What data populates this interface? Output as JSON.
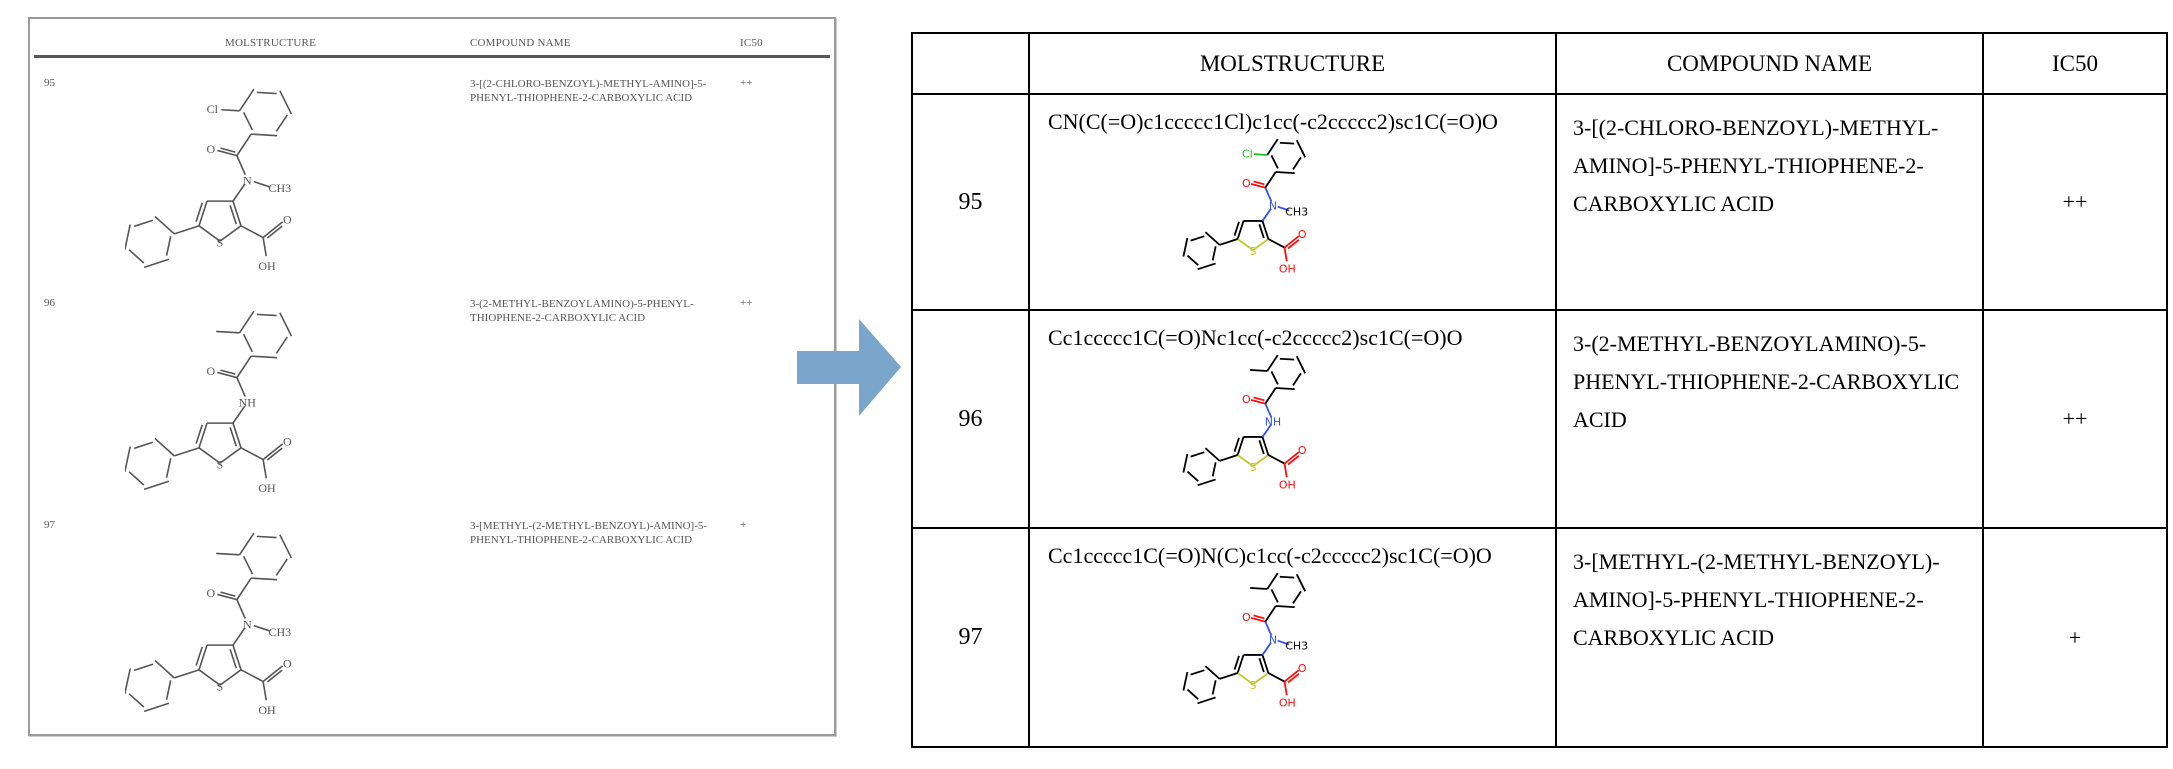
{
  "source_document": {
    "headers": {
      "molstructure": "MOLSTRUCTURE",
      "compound_name": "COMPOUND NAME",
      "ic50": "IC50"
    },
    "rows": [
      {
        "id": "95",
        "name": "3-[(2-CHLORO-BENZOYL)-METHYL-AMINO]-5-PHENYL-THIOPHENE-2-CARBOXYLIC ACID",
        "ic50": "++",
        "atom_labels": [
          "O",
          "Cl",
          "N",
          "CH3",
          "S",
          "O",
          "OH"
        ]
      },
      {
        "id": "96",
        "name": "3-(2-METHYL-BENZOYLAMINO)-5-PHENYL-THIOPHENE-2-CARBOXYLIC ACID",
        "ic50": "++",
        "atom_labels": [
          "O",
          "NH",
          "S",
          "O",
          "OH"
        ]
      },
      {
        "id": "97",
        "name": "3-[METHYL-(2-METHYL-BENZOYL)-AMINO]-5-PHENYL-THIOPHENE-2-CARBOXYLIC ACID",
        "ic50": "+",
        "atom_labels": [
          "O",
          "N",
          "CH3",
          "S",
          "O",
          "OH"
        ]
      }
    ]
  },
  "arrow": {
    "icon": "right-arrow-icon",
    "color": "#7aa6cc"
  },
  "extracted_table": {
    "headers": {
      "id": "",
      "molstructure": "MOLSTRUCTURE",
      "compound_name": "COMPOUND NAME",
      "ic50": "IC50"
    },
    "rows": [
      {
        "id": "95",
        "smiles": "CN(C(=O)c1ccccc1Cl)c1cc(-c2ccccc2)sc1C(=O)O",
        "name": "3-[(2-CHLORO-BENZOYL)-METHYL-AMINO]-5-PHENYL-THIOPHENE-2-CARBOXYLIC ACID",
        "ic50": "++"
      },
      {
        "id": "96",
        "smiles": "Cc1ccccc1C(=O)Nc1cc(-c2ccccc2)sc1C(=O)O",
        "name": "3-(2-METHYL-BENZOYLAMINO)-5-PHENYL-THIOPHENE-2-CARBOXYLIC ACID",
        "ic50": "++"
      },
      {
        "id": "97",
        "smiles": "Cc1ccccc1C(=O)N(C)c1cc(-c2ccccc2)sc1C(=O)O",
        "name": "3-[METHYL-(2-METHYL-BENZOYL)-AMINO]-5-PHENYL-THIOPHENE-2-CARBOXYLIC ACID",
        "ic50": "+"
      }
    ]
  },
  "atom_colors": {
    "O": "#ff0d0d",
    "N": "#3050f8",
    "S": "#c6c62c",
    "Cl": "#1fbf1f",
    "C": "#000000",
    "scan": "#555555"
  }
}
